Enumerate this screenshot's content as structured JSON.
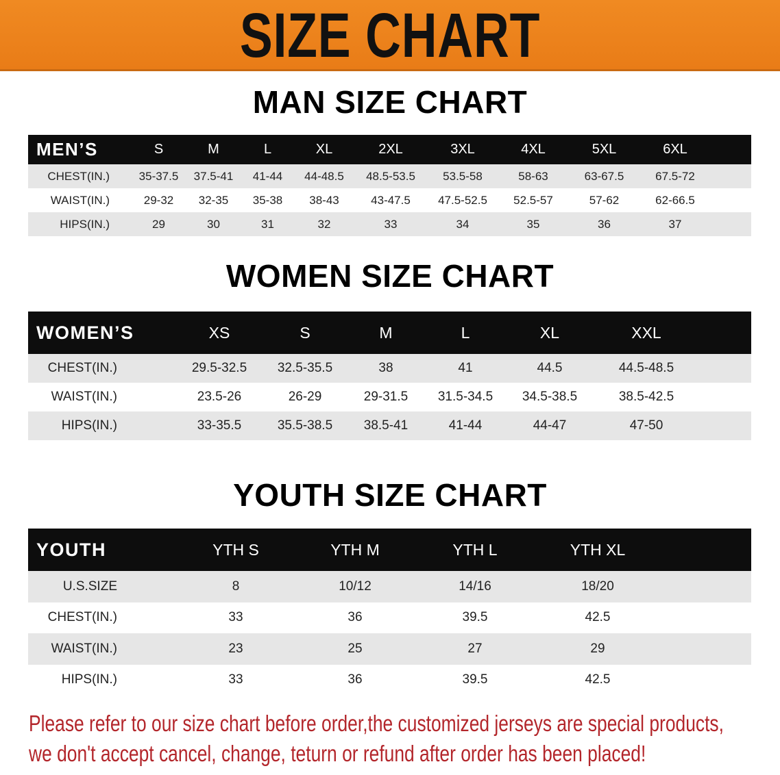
{
  "title": "SIZE CHART",
  "colors": {
    "banner": "#ec8219",
    "header_bg": "#0d0d0d",
    "row_shade": "#e6e6e6",
    "note": "#b3262b"
  },
  "men": {
    "heading": "MAN SIZE CHART",
    "header": [
      "MEN’S",
      "S",
      "M",
      "L",
      "XL",
      "2XL",
      "3XL",
      "4XL",
      "5XL",
      "6XL"
    ],
    "rows": [
      [
        "CHEST(IN.)",
        "35-37.5",
        "37.5-41",
        "41-44",
        "44-48.5",
        "48.5-53.5",
        "53.5-58",
        "58-63",
        "63-67.5",
        "67.5-72"
      ],
      [
        "WAIST(IN.)",
        "29-32",
        "32-35",
        "35-38",
        "38-43",
        "43-47.5",
        "47.5-52.5",
        "52.5-57",
        "57-62",
        "62-66.5"
      ],
      [
        "HIPS(IN.)",
        "29",
        "30",
        "31",
        "32",
        "33",
        "34",
        "35",
        "36",
        "37"
      ]
    ]
  },
  "women": {
    "heading": "WOMEN SIZE CHART",
    "header": [
      "WOMEN’S",
      "XS",
      "S",
      "M",
      "L",
      "XL",
      "XXL"
    ],
    "rows": [
      [
        "CHEST(IN.)",
        "29.5-32.5",
        "32.5-35.5",
        "38",
        "41",
        "44.5",
        "44.5-48.5"
      ],
      [
        "WAIST(IN.)",
        "23.5-26",
        "26-29",
        "29-31.5",
        "31.5-34.5",
        "34.5-38.5",
        "38.5-42.5"
      ],
      [
        "HIPS(IN.)",
        "33-35.5",
        "35.5-38.5",
        "38.5-41",
        "41-44",
        "44-47",
        "47-50"
      ]
    ]
  },
  "youth": {
    "heading": "YOUTH SIZE CHART",
    "header": [
      "YOUTH",
      "YTH S",
      "YTH M",
      "YTH L",
      "YTH XL"
    ],
    "rows": [
      [
        "U.S.SIZE",
        "8",
        "10/12",
        "14/16",
        "18/20"
      ],
      [
        "CHEST(IN.)",
        "33",
        "36",
        "39.5",
        "42.5"
      ],
      [
        "WAIST(IN.)",
        "23",
        "25",
        "27",
        "29"
      ],
      [
        "HIPS(IN.)",
        "33",
        "36",
        "39.5",
        "42.5"
      ]
    ]
  },
  "note": [
    "Please refer to our size chart before order,the customized jerseys are special products,",
    "we don't accept cancel, change, teturn or refund after order has been placed!"
  ]
}
